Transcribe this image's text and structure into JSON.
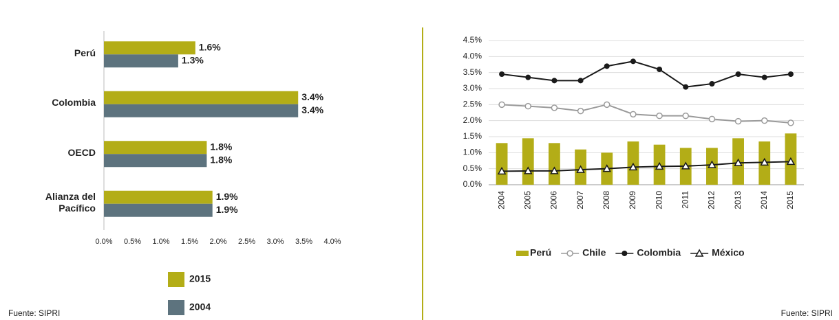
{
  "chart_data": [
    {
      "type": "bar",
      "orientation": "horizontal",
      "categories": [
        "Perú",
        "Colombia",
        "OECD",
        "Alianza del Pacífico"
      ],
      "series": [
        {
          "name": "2015",
          "color": "#b3ad17",
          "values": [
            1.6,
            3.4,
            1.8,
            1.9
          ],
          "value_labels": [
            "1.6%",
            "3.4%",
            "1.8%",
            "1.9%"
          ]
        },
        {
          "name": "2004",
          "color": "#5d737e",
          "values": [
            1.3,
            3.4,
            1.8,
            1.9
          ],
          "value_labels": [
            "1.3%",
            "3.4%",
            "1.8%",
            "1.9%"
          ]
        }
      ],
      "xlim": [
        0,
        4
      ],
      "xticks": [
        {
          "value": 0,
          "label": "0.0%"
        },
        {
          "value": 0.5,
          "label": "0.5%"
        },
        {
          "value": 1,
          "label": "1.0%"
        },
        {
          "value": 1.5,
          "label": "1.5%"
        },
        {
          "value": 2,
          "label": "2.0%"
        },
        {
          "value": 2.5,
          "label": "2.5%"
        },
        {
          "value": 3,
          "label": "3.0%"
        },
        {
          "value": 3.5,
          "label": "3.5%"
        },
        {
          "value": 4,
          "label": "4.0%"
        }
      ],
      "source": "Fuente: SIPRI"
    },
    {
      "type": "combo",
      "categories": [
        "2004",
        "2005",
        "2006",
        "2007",
        "2008",
        "2009",
        "2010",
        "2011",
        "2012",
        "2013",
        "2014",
        "2015"
      ],
      "series": [
        {
          "name": "Perú",
          "type": "bar",
          "color": "#b3ad17",
          "values": [
            1.3,
            1.45,
            1.3,
            1.1,
            1.0,
            1.35,
            1.25,
            1.15,
            1.15,
            1.45,
            1.35,
            1.6
          ]
        },
        {
          "name": "Chile",
          "type": "line",
          "marker": "open-circle",
          "color": "#9a9a9a",
          "values": [
            2.5,
            2.45,
            2.4,
            2.3,
            2.5,
            2.2,
            2.15,
            2.15,
            2.05,
            1.98,
            2.0,
            1.93
          ]
        },
        {
          "name": "Colombia",
          "type": "line",
          "marker": "circle",
          "color": "#1a1a1a",
          "values": [
            3.45,
            3.35,
            3.25,
            3.25,
            3.7,
            3.85,
            3.6,
            3.05,
            3.15,
            3.45,
            3.35,
            3.45
          ]
        },
        {
          "name": "México",
          "type": "line",
          "marker": "open-triangle",
          "color": "#1a1a1a",
          "values": [
            0.42,
            0.43,
            0.43,
            0.47,
            0.5,
            0.55,
            0.57,
            0.58,
            0.62,
            0.68,
            0.7,
            0.72
          ]
        }
      ],
      "ylim": [
        0,
        4.5
      ],
      "yticks": [
        {
          "value": 0,
          "label": "0.0%"
        },
        {
          "value": 0.5,
          "label": "0.5%"
        },
        {
          "value": 1,
          "label": "1.0%"
        },
        {
          "value": 1.5,
          "label": "1.5%"
        },
        {
          "value": 2,
          "label": "2.0%"
        },
        {
          "value": 2.5,
          "label": "2.5%"
        },
        {
          "value": 3,
          "label": "3.0%"
        },
        {
          "value": 3.5,
          "label": "3.5%"
        },
        {
          "value": 4,
          "label": "4.0%"
        },
        {
          "value": 4.5,
          "label": "4.5%"
        }
      ],
      "grid": true,
      "source": "Fuente: SIPRI"
    }
  ]
}
